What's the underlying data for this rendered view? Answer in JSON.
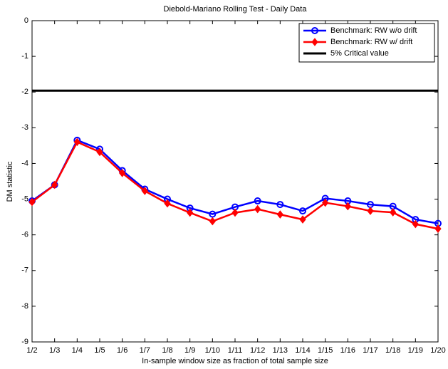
{
  "chart_data": {
    "type": "line",
    "title": "Diebold-Mariano Rolling Test - Daily Data",
    "x_label": "In-sample window size as fraction of total sample size",
    "y_label": "DM statistic",
    "categories": [
      "1/2",
      "1/3",
      "1/4",
      "1/5",
      "1/6",
      "1/7",
      "1/8",
      "1/9",
      "1/10",
      "1/11",
      "1/12",
      "1/13",
      "1/14",
      "1/15",
      "1/16",
      "1/17",
      "1/18",
      "1/19",
      "1/20"
    ],
    "series": [
      {
        "name": "Benchmark: RW w/o drift",
        "color": "#0000ff",
        "marker": "circle",
        "values": [
          -5.05,
          -4.6,
          -3.35,
          -3.6,
          -4.2,
          -4.72,
          -5.0,
          -5.25,
          -5.42,
          -5.22,
          -5.05,
          -5.15,
          -5.33,
          -4.98,
          -5.05,
          -5.15,
          -5.2,
          -5.57,
          -5.68
        ]
      },
      {
        "name": "Benchmark: RW w/ drift",
        "color": "#ff0000",
        "marker": "diamond",
        "values": [
          -5.08,
          -4.6,
          -3.4,
          -3.68,
          -4.27,
          -4.77,
          -5.12,
          -5.38,
          -5.62,
          -5.38,
          -5.28,
          -5.43,
          -5.57,
          -5.1,
          -5.2,
          -5.33,
          -5.37,
          -5.7,
          -5.83
        ]
      },
      {
        "name": "5% Critical value",
        "color": "#000000",
        "marker": "none",
        "values": [
          -1.96,
          -1.96,
          -1.96,
          -1.96,
          -1.96,
          -1.96,
          -1.96,
          -1.96,
          -1.96,
          -1.96,
          -1.96,
          -1.96,
          -1.96,
          -1.96,
          -1.96,
          -1.96,
          -1.96,
          -1.96,
          -1.96
        ]
      }
    ],
    "ylim": [
      -9,
      0
    ],
    "yticks": [
      0,
      -1,
      -2,
      -3,
      -4,
      -5,
      -6,
      -7,
      -8,
      -9
    ],
    "legend": "top-right"
  }
}
